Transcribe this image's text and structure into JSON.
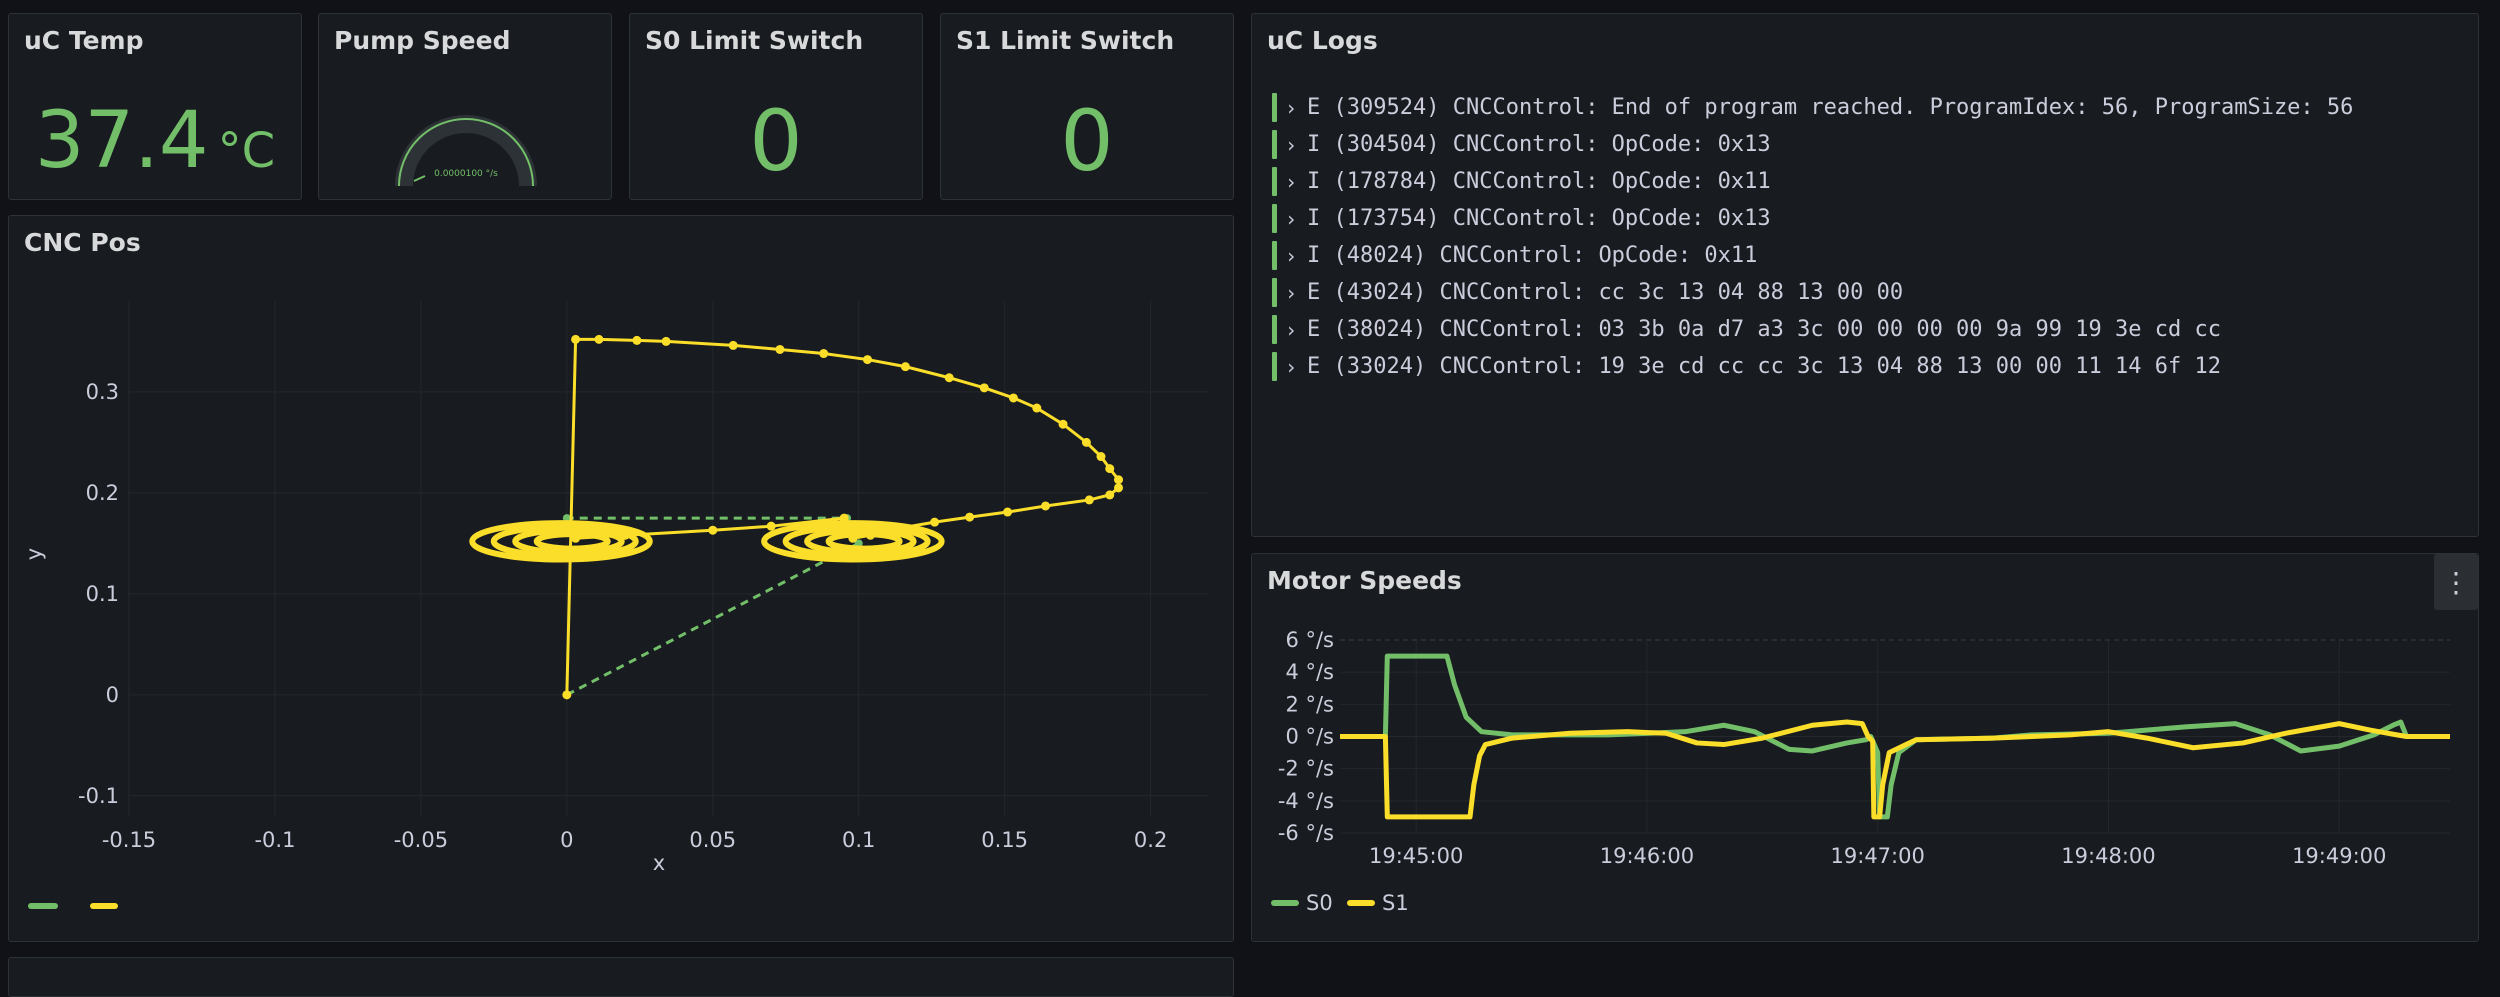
{
  "panels": {
    "uc_temp": {
      "title": "uC Temp",
      "value": "37.4",
      "unit": "°C"
    },
    "pump_speed": {
      "title": "Pump Speed",
      "gauge_label": "0.0000100 °/s",
      "value": 0.0
    },
    "s0_limit": {
      "title": "S0 Limit Switch",
      "value": "0"
    },
    "s1_limit": {
      "title": "S1 Limit Switch",
      "value": "0"
    },
    "uc_logs": {
      "title": "uC Logs",
      "entries": [
        "E (309524) CNCControl: End of program reached. ProgramIdex: 56, ProgramSize: 56",
        "I (304504) CNCControl: OpCode: 0x13",
        "I (178784) CNCControl: OpCode: 0x11",
        "I (173754) CNCControl: OpCode: 0x13",
        "I (48024) CNCControl: OpCode: 0x11",
        "E (43024) CNCControl: cc 3c 13 04 88 13 00 00",
        "E (38024) CNCControl: 03 3b 0a d7 a3 3c 00 00 00 00 9a 99 19 3e cd cc",
        "E (33024) CNCControl: 19 3e cd cc cc 3c 13 04 88 13 00 00 11 14 6f 12"
      ]
    },
    "cnc_pos": {
      "title": "CNC Pos"
    },
    "motor_speeds": {
      "title": "Motor Speeds",
      "menu_icon": "kebab-menu-icon"
    }
  },
  "colors": {
    "green": "#73bf69",
    "yellow": "#fade2a"
  },
  "chart_data": [
    {
      "type": "scatter",
      "title": "CNC Pos",
      "xlabel": "x",
      "ylabel": "y",
      "xlim": [
        -0.15,
        0.22
      ],
      "ylim": [
        -0.12,
        0.39
      ],
      "x_ticks": [
        -0.15,
        -0.1,
        -0.05,
        0,
        0.05,
        0.1,
        0.15,
        0.2
      ],
      "y_ticks": [
        -0.1,
        0,
        0.1,
        0.2,
        0.3
      ],
      "x_tick_labels": [
        "-0.15",
        "-0.1",
        "-0.05",
        "0",
        "0.05",
        "0.1",
        "0.15",
        "0.2"
      ],
      "y_tick_labels": [
        "-0.1",
        "0",
        "0.1",
        "0.2",
        "0.3"
      ],
      "grid": true,
      "series": [
        {
          "color": "#73bf69",
          "style": "dashed",
          "points": [
            [
              0,
              0
            ],
            [
              0.1,
              0.15
            ],
            [
              0.096,
              0.175
            ],
            [
              0,
              0.175
            ]
          ]
        },
        {
          "color": "#fade2a",
          "style": "solid",
          "path": [
            [
              0,
              0
            ],
            [
              0.003,
              0.352
            ],
            [
              0.011,
              0.352
            ],
            [
              0.024,
              0.351
            ],
            [
              0.034,
              0.35
            ],
            [
              0.057,
              0.346
            ],
            [
              0.073,
              0.342
            ],
            [
              0.088,
              0.338
            ],
            [
              0.103,
              0.332
            ],
            [
              0.116,
              0.325
            ],
            [
              0.131,
              0.314
            ],
            [
              0.143,
              0.304
            ],
            [
              0.153,
              0.294
            ],
            [
              0.161,
              0.284
            ],
            [
              0.17,
              0.268
            ],
            [
              0.178,
              0.25
            ],
            [
              0.183,
              0.236
            ],
            [
              0.186,
              0.224
            ],
            [
              0.189,
              0.213
            ],
            [
              0.189,
              0.205
            ],
            [
              0.186,
              0.198
            ],
            [
              0.179,
              0.193
            ],
            [
              0.164,
              0.187
            ],
            [
              0.151,
              0.181
            ],
            [
              0.138,
              0.176
            ],
            [
              0.126,
              0.171
            ],
            [
              0.114,
              0.165
            ],
            [
              0.104,
              0.158
            ],
            [
              0.098,
              0.155
            ]
          ],
          "spirals": [
            {
              "cx": -0.002,
              "cy": 0.152,
              "rx": 0.016,
              "ry": 0.018
            },
            {
              "cx": 0.098,
              "cy": 0.152,
              "rx": 0.016,
              "ry": 0.018
            }
          ],
          "link": [
            [
              0.003,
              0.155
            ],
            [
              0.02,
              0.158
            ],
            [
              0.05,
              0.163
            ],
            [
              0.07,
              0.167
            ],
            [
              0.095,
              0.175
            ]
          ]
        }
      ],
      "legend_placement": "bottom-left"
    },
    {
      "type": "line",
      "title": "Motor Speeds",
      "ylim": [
        -6,
        6
      ],
      "y_ticks": [
        6,
        4,
        2,
        0,
        -2,
        -4,
        -6
      ],
      "y_tick_labels": [
        "6 °/s",
        "4 °/s",
        "2 °/s",
        "0 °/s",
        "-2 °/s",
        "-4 °/s",
        "-6 °/s"
      ],
      "x_ticks": [
        300,
        900,
        1500,
        2100,
        2700
      ],
      "x_tick_labels": [
        "19:45:00",
        "19:46:00",
        "19:47:00",
        "19:48:00",
        "19:49:00"
      ],
      "xlim": [
        102,
        2988
      ],
      "legend_placement": "bottom-left",
      "series": [
        {
          "name": "S0",
          "color": "#73bf69",
          "points": [
            [
              102,
              0
            ],
            [
              220,
              0
            ],
            [
              225,
              5
            ],
            [
              300,
              5
            ],
            [
              380,
              5
            ],
            [
              400,
              3.2
            ],
            [
              430,
              1.2
            ],
            [
              470,
              0.3
            ],
            [
              550,
              0.1
            ],
            [
              700,
              0.1
            ],
            [
              800,
              0.1
            ],
            [
              1000,
              0.3
            ],
            [
              1100,
              0.7
            ],
            [
              1180,
              0.3
            ],
            [
              1270,
              -0.8
            ],
            [
              1330,
              -0.9
            ],
            [
              1420,
              -0.4
            ],
            [
              1470,
              -0.2
            ],
            [
              1482,
              0
            ],
            [
              1500,
              -1
            ],
            [
              1505,
              -5
            ],
            [
              1525,
              -5
            ],
            [
              1535,
              -3
            ],
            [
              1555,
              -1
            ],
            [
              1600,
              -0.2
            ],
            [
              1800,
              -0.1
            ],
            [
              1900,
              0.1
            ],
            [
              2100,
              0.2
            ],
            [
              2300,
              0.6
            ],
            [
              2430,
              0.8
            ],
            [
              2520,
              0.1
            ],
            [
              2600,
              -0.9
            ],
            [
              2700,
              -0.6
            ],
            [
              2790,
              0.1
            ],
            [
              2840,
              0.7
            ],
            [
              2860,
              0.9
            ],
            [
              2875,
              0
            ],
            [
              2988,
              0
            ]
          ]
        },
        {
          "name": "S1",
          "color": "#fade2a",
          "points": [
            [
              102,
              0
            ],
            [
              220,
              0
            ],
            [
              225,
              -5
            ],
            [
              300,
              -5
            ],
            [
              440,
              -5
            ],
            [
              450,
              -3
            ],
            [
              465,
              -1.2
            ],
            [
              480,
              -0.5
            ],
            [
              550,
              -0.1
            ],
            [
              700,
              0.2
            ],
            [
              850,
              0.3
            ],
            [
              950,
              0.2
            ],
            [
              1030,
              -0.4
            ],
            [
              1100,
              -0.5
            ],
            [
              1200,
              -0.1
            ],
            [
              1330,
              0.7
            ],
            [
              1420,
              0.9
            ],
            [
              1460,
              0.8
            ],
            [
              1475,
              0
            ],
            [
              1487,
              -0.3
            ],
            [
              1490,
              -5
            ],
            [
              1505,
              -5
            ],
            [
              1513,
              -3
            ],
            [
              1530,
              -1
            ],
            [
              1600,
              -0.2
            ],
            [
              1800,
              -0.1
            ],
            [
              2000,
              0.1
            ],
            [
              2100,
              0.3
            ],
            [
              2200,
              -0.1
            ],
            [
              2320,
              -0.7
            ],
            [
              2450,
              -0.4
            ],
            [
              2560,
              0.2
            ],
            [
              2700,
              0.8
            ],
            [
              2780,
              0.4
            ],
            [
              2850,
              0.1
            ],
            [
              2875,
              0
            ],
            [
              2988,
              0
            ]
          ]
        }
      ]
    }
  ]
}
